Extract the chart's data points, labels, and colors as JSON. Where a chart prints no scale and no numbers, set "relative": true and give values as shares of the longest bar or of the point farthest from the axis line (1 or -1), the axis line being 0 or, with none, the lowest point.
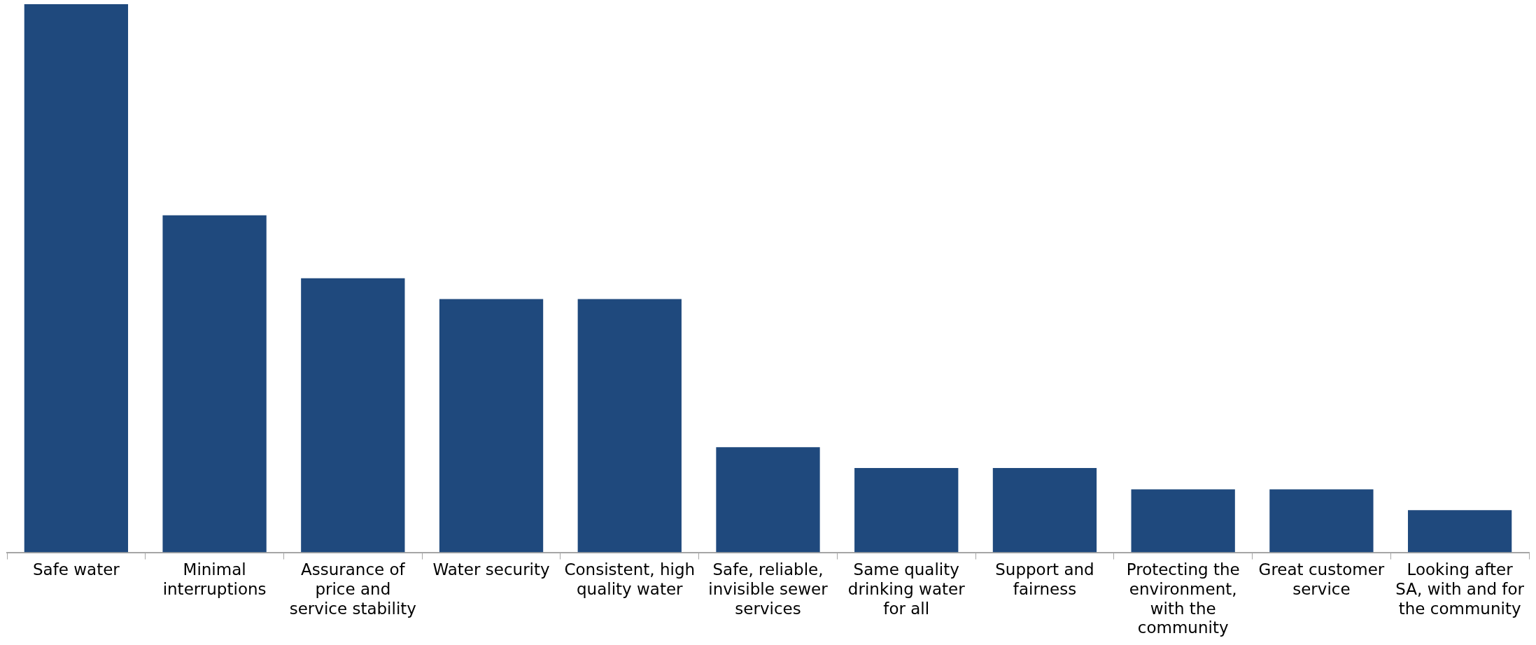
{
  "chart_data": {
    "type": "bar",
    "relative": true,
    "color": "#1f497d",
    "grid": false,
    "legend": false,
    "categories": [
      "Safe water",
      "Minimal interruptions",
      "Assurance of price and service stability",
      "Water security",
      "Consistent, high quality water",
      "Safe, reliable, invisible sewer services",
      "Same quality drinking water for all",
      "Support and fairness",
      "Protecting the environment, with the community",
      "Great customer service",
      "Looking after SA, with and for the community"
    ],
    "values": [
      1,
      0.615,
      0.5,
      0.462,
      0.462,
      0.192,
      0.154,
      0.154,
      0.115,
      0.115,
      0.077
    ]
  }
}
